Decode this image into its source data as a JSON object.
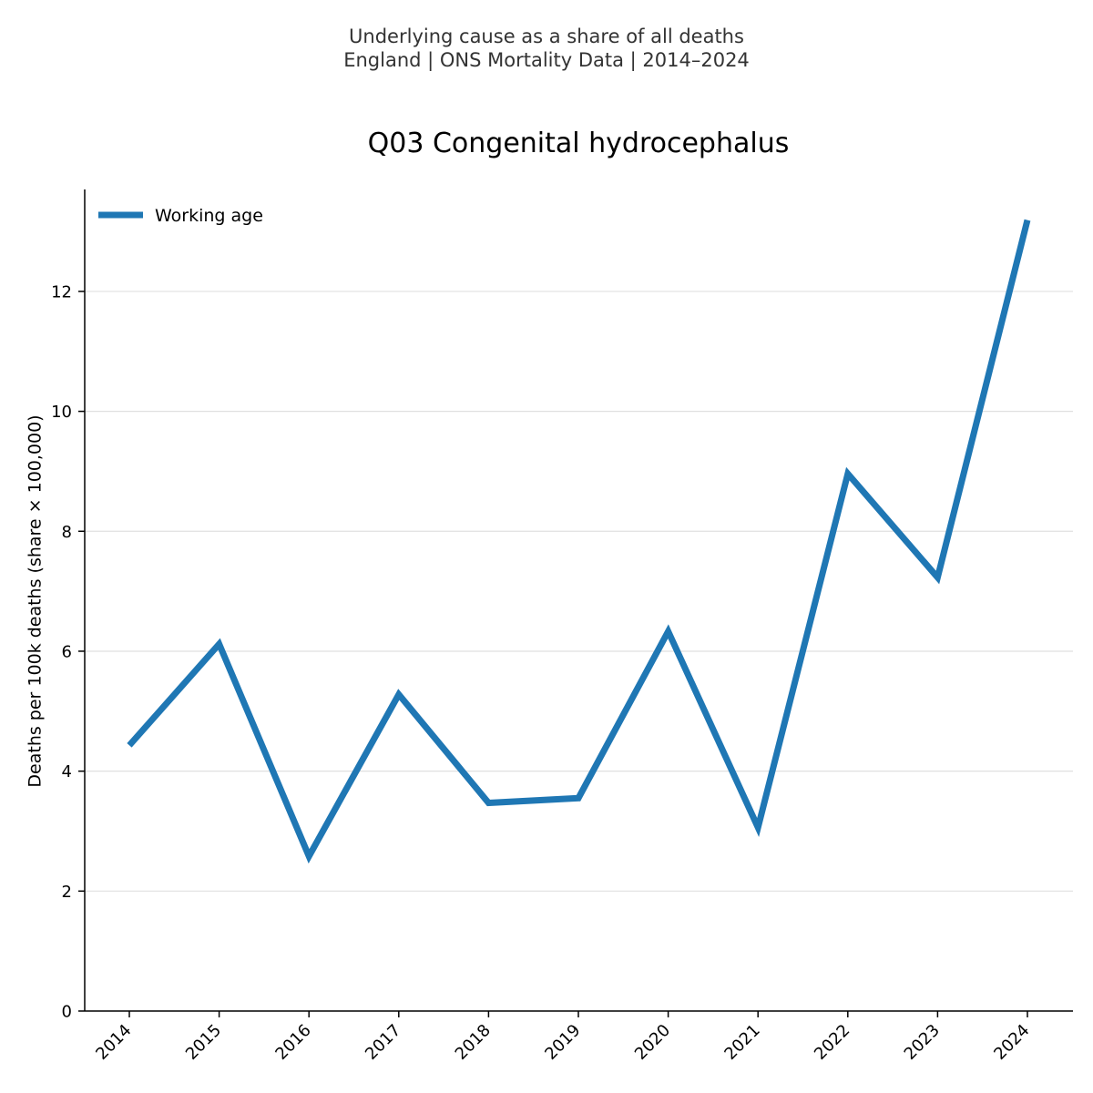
{
  "header": {
    "subtitle_line1": "Underlying cause as a share of all deaths",
    "subtitle_line2": "England | ONS Mortality Data | 2014–2024"
  },
  "chart_data": {
    "type": "line",
    "title": "Q03 Congenital hydrocephalus",
    "xlabel": "",
    "ylabel": "Deaths per 100k deaths (share × 100,000)",
    "x": [
      "2014",
      "2015",
      "2016",
      "2017",
      "2018",
      "2019",
      "2020",
      "2021",
      "2022",
      "2023",
      "2024"
    ],
    "series": [
      {
        "name": "Working age",
        "color": "#1f77b4",
        "values": [
          4.43,
          6.12,
          2.58,
          5.28,
          3.47,
          3.55,
          6.33,
          3.06,
          8.96,
          7.23,
          13.19
        ]
      }
    ],
    "ylim": [
      0,
      13.7
    ],
    "yticks": [
      0,
      2,
      4,
      6,
      8,
      10,
      12
    ],
    "ytick_labels": [
      "0",
      "2",
      "4",
      "6",
      "8",
      "10",
      "12"
    ],
    "grid": "horizontal",
    "legend_position": "top-left"
  }
}
